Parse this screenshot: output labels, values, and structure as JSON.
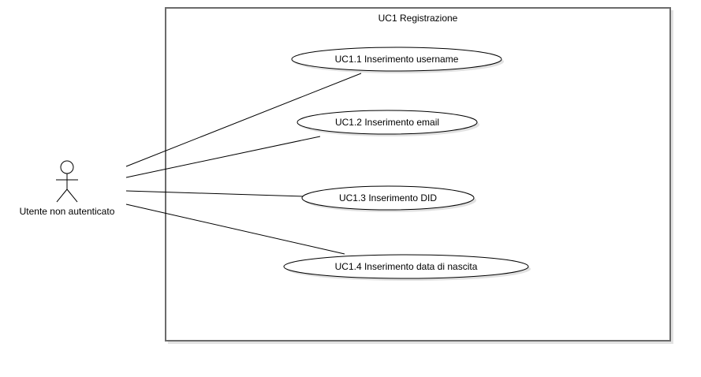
{
  "diagram": {
    "system": {
      "title": "UC1 Registrazione"
    },
    "actor": {
      "label": "Utente non autenticato"
    },
    "use_cases": [
      {
        "label": "UC1.1 Inserimento username"
      },
      {
        "label": "UC1.2 Inserimento email"
      },
      {
        "label": "UC1.3 Inserimento DID"
      },
      {
        "label": "UC1.4 Inserimento data di nascita"
      }
    ]
  }
}
